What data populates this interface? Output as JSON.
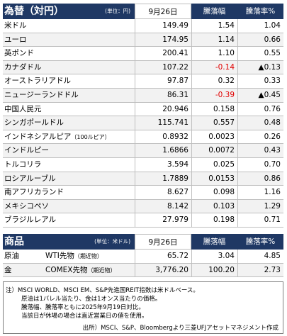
{
  "fx": {
    "title": "為替（対円）",
    "unit": "(単位：円)",
    "columns": [
      "9月26日",
      "騰落幅",
      "騰落率%"
    ],
    "rows": [
      {
        "name": "米ドル",
        "values": [
          "149.49",
          "1.54",
          "1.04"
        ]
      },
      {
        "name": "ユーロ",
        "values": [
          "174.95",
          "1.14",
          "0.66"
        ]
      },
      {
        "name": "英ポンド",
        "values": [
          "200.41",
          "1.10",
          "0.55"
        ]
      },
      {
        "name": "カナダドル",
        "values": [
          "107.22",
          "-0.14",
          "▲0.13"
        ]
      },
      {
        "name": "オーストラリアドル",
        "values": [
          "97.87",
          "0.32",
          "0.33"
        ]
      },
      {
        "name": "ニュージーランドドル",
        "values": [
          "86.31",
          "-0.39",
          "▲0.45"
        ]
      },
      {
        "name": "中国人民元",
        "values": [
          "20.946",
          "0.158",
          "0.76"
        ]
      },
      {
        "name": "シンガポールドル",
        "values": [
          "115.741",
          "0.557",
          "0.48"
        ]
      },
      {
        "name": "インドネシアルピア",
        "sub": "（100ルピア）",
        "values": [
          "0.8932",
          "0.0023",
          "0.26"
        ]
      },
      {
        "name": "インドルピー",
        "values": [
          "1.6866",
          "0.0072",
          "0.43"
        ]
      },
      {
        "name": "トルコリラ",
        "values": [
          "3.594",
          "0.025",
          "0.70"
        ]
      },
      {
        "name": "ロシアルーブル",
        "values": [
          "1.7889",
          "0.0153",
          "0.86"
        ]
      },
      {
        "name": "南アフリカランド",
        "values": [
          "8.627",
          "0.098",
          "1.16"
        ]
      },
      {
        "name": "メキシコペソ",
        "values": [
          "8.142",
          "0.103",
          "1.29"
        ]
      },
      {
        "name": "ブラジルレアル",
        "values": [
          "27.979",
          "0.198",
          "0.71"
        ]
      }
    ]
  },
  "commodities": {
    "title": "商品",
    "unit": "(単位：米ドル)",
    "columns": [
      "9月26日",
      "騰落幅",
      "騰落率%"
    ],
    "rows": [
      {
        "label": "原油",
        "name": "WTI先物",
        "sub": "（期近物）",
        "values": [
          "65.72",
          "3.04",
          "4.85"
        ]
      },
      {
        "label": "金",
        "name": "COMEX先物",
        "sub": "（期近物）",
        "values": [
          "3,776.20",
          "100.20",
          "2.73"
        ]
      }
    ]
  },
  "notes": [
    "注）MSCI WORLD、MSCI EM、S&P先進国REIT指数は米ドルベース。",
    "原油は1バレル当たり、金は1オンス当たりの価格。",
    "騰落幅、騰落率ともに2025年9月19日対比。",
    "当該日が休場の場合は直近営業日の値を使用。"
  ],
  "source": "出所）MSCI、S&P、Bloombergより三菱UFJアセットマネジメント作成"
}
